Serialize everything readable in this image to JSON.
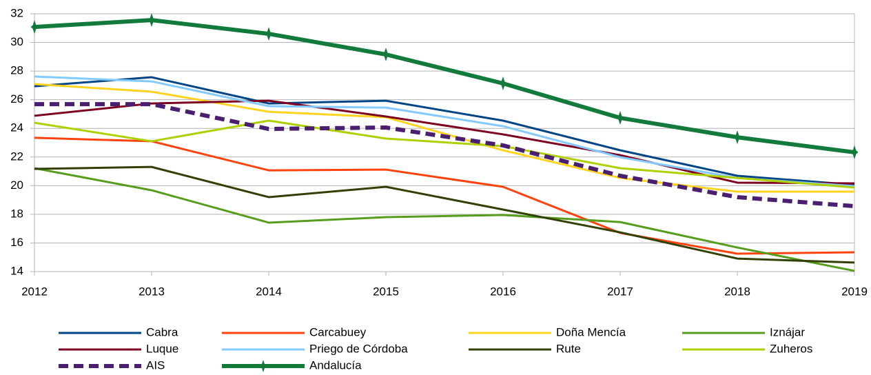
{
  "chart_data": {
    "type": "line",
    "x": [
      2012,
      2013,
      2014,
      2015,
      2016,
      2017,
      2018,
      2019
    ],
    "xlim": [
      2012,
      2019
    ],
    "xticks": [
      2012,
      2013,
      2014,
      2015,
      2016,
      2017,
      2018,
      2019
    ],
    "ylim": [
      14,
      32
    ],
    "yticks": [
      14,
      16,
      18,
      20,
      22,
      24,
      26,
      28,
      30,
      32
    ],
    "grid": true,
    "legend": "bottom",
    "series": [
      {
        "name": "Cabra",
        "color": "#004586",
        "linewidth": 3,
        "values": [
          26.94,
          27.57,
          25.74,
          25.93,
          24.54,
          22.47,
          20.69,
          20.06
        ]
      },
      {
        "name": "Carcabuey",
        "color": "#ff420e",
        "linewidth": 3,
        "values": [
          23.34,
          23.1,
          21.07,
          21.12,
          19.92,
          16.7,
          15.25,
          15.35
        ]
      },
      {
        "name": "Doña Mencía",
        "color": "#ffd320",
        "linewidth": 3,
        "values": [
          27.09,
          26.56,
          25.16,
          24.78,
          22.47,
          20.54,
          19.58,
          19.58
        ]
      },
      {
        "name": "Iznájar",
        "color": "#579d1c",
        "linewidth": 3,
        "values": [
          21.22,
          19.68,
          17.42,
          17.8,
          17.95,
          17.46,
          15.68,
          14.05
        ]
      },
      {
        "name": "Luque",
        "color": "#7e0021",
        "linewidth": 3,
        "values": [
          24.88,
          25.74,
          25.93,
          24.83,
          23.58,
          22.13,
          20.21,
          20.16
        ]
      },
      {
        "name": "Priego de Córdoba",
        "color": "#83caff",
        "linewidth": 3,
        "values": [
          27.62,
          27.28,
          25.55,
          25.45,
          24.15,
          21.99,
          20.54,
          19.97
        ]
      },
      {
        "name": "Rute",
        "color": "#314004",
        "linewidth": 3,
        "values": [
          21.17,
          21.31,
          19.2,
          19.92,
          18.33,
          16.74,
          14.91,
          14.63
        ]
      },
      {
        "name": "Zuheros",
        "color": "#aecf00",
        "linewidth": 3,
        "values": [
          24.39,
          23.1,
          24.54,
          23.29,
          22.76,
          21.22,
          20.54,
          19.87
        ]
      },
      {
        "name": "AIS",
        "color": "#4b1f6f",
        "linewidth": 6,
        "dash": true,
        "values": [
          25.69,
          25.69,
          23.96,
          24.06,
          22.81,
          20.69,
          19.2,
          18.57
        ]
      },
      {
        "name": "Andalucía",
        "color": "#127b3b",
        "linewidth": 6,
        "marker": "star",
        "values": [
          31.08,
          31.56,
          30.6,
          29.16,
          27.14,
          24.73,
          23.38,
          22.33
        ]
      }
    ]
  }
}
